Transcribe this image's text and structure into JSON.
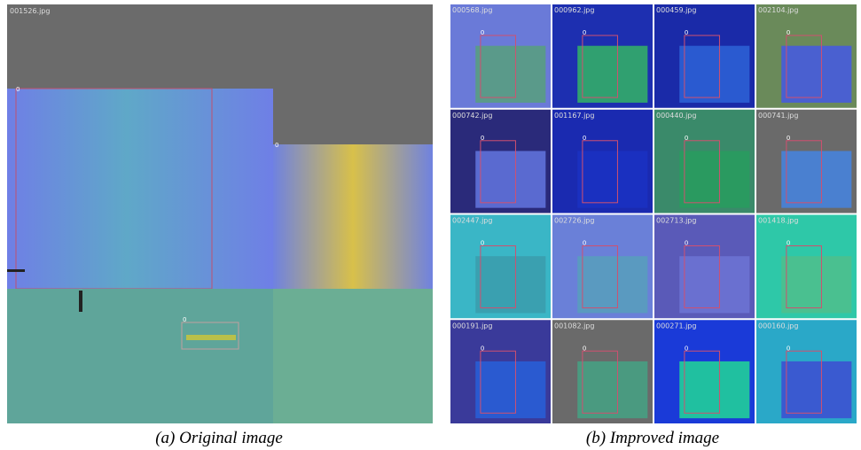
{
  "panels": [
    {
      "caption": "(a) Original image",
      "tiles": [
        "001526.jpg"
      ]
    },
    {
      "caption": "(b) Improved image",
      "tiles": [
        "000568.jpg",
        "000962.jpg",
        "000459.jpg",
        "002104.jpg",
        "000742.jpg",
        "001167.jpg",
        "000440.jpg",
        "000741.jpg",
        "002447.jpg",
        "002726.jpg",
        "002713.jpg",
        "001418.jpg",
        "000191.jpg",
        "001082.jpg",
        "000271.jpg",
        "000160.jpg"
      ]
    }
  ],
  "box_label": "0"
}
